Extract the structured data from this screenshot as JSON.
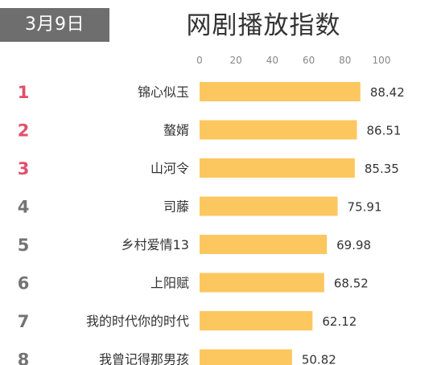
{
  "date_badge": "3月9日",
  "title": "网剧播放指数",
  "colors": {
    "bar": "#fcc75f",
    "rank_top": "#e0506a",
    "rank_other": "#747474",
    "label": "#333333",
    "axis_text": "#888888",
    "badge_bg": "#6e6e6e"
  },
  "chart_data": {
    "type": "bar",
    "orientation": "horizontal",
    "title": "网剧播放指数",
    "xlim": [
      0,
      100
    ],
    "x_ticks": [
      0,
      20,
      40,
      60,
      80,
      100
    ],
    "x_axis_position": "top",
    "grid": false,
    "legend": "none",
    "rows": [
      {
        "rank": "1",
        "name": "锦心似玉",
        "value": 88.42,
        "value_label": "88.42"
      },
      {
        "rank": "2",
        "name": "螯婿",
        "value": 86.51,
        "value_label": "86.51"
      },
      {
        "rank": "3",
        "name": "山河令",
        "value": 85.35,
        "value_label": "85.35"
      },
      {
        "rank": "4",
        "name": "司藤",
        "value": 75.91,
        "value_label": "75.91"
      },
      {
        "rank": "5",
        "name": "乡村爱情13",
        "value": 69.98,
        "value_label": "69.98"
      },
      {
        "rank": "6",
        "name": "上阳赋",
        "value": 68.52,
        "value_label": "68.52"
      },
      {
        "rank": "7",
        "name": "我的时代你的时代",
        "value": 62.12,
        "value_label": "62.12"
      },
      {
        "rank": "8",
        "name": "我曾记得那男孩",
        "value": 50.82,
        "value_label": "50.82"
      }
    ]
  }
}
